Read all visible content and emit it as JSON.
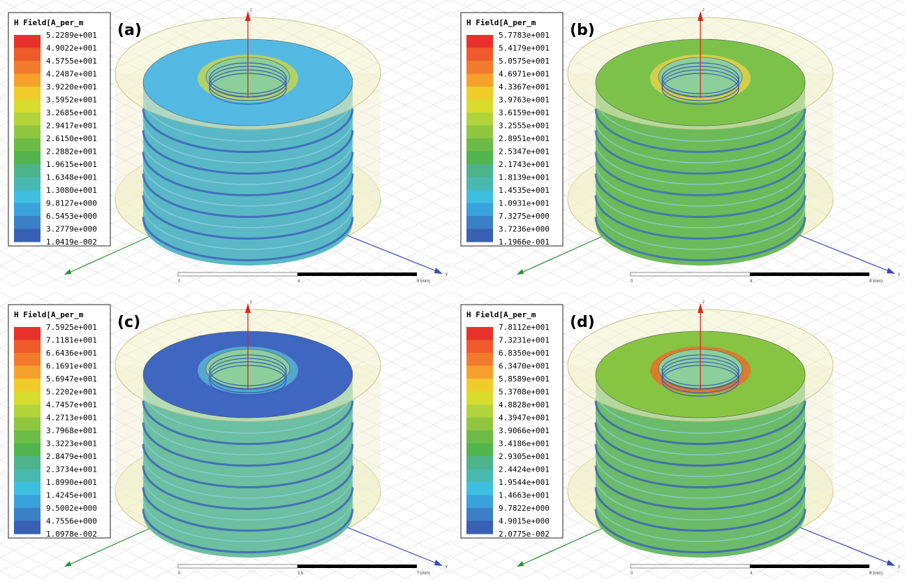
{
  "panels": [
    {
      "label": "(a)",
      "legend": {
        "title": "H Field[A_per_m",
        "labels": [
          "5.2289e+001",
          "4.9022e+001",
          "4.5755e+001",
          "4.2487e+001",
          "3.9220e+001",
          "3.5952e+001",
          "3.2685e+001",
          "2.9417e+001",
          "2.6150e+001",
          "2.2882e+001",
          "1.9615e+001",
          "1.6348e+001",
          "1.3080e+001",
          "9.8127e+000",
          "6.5453e+000",
          "3.2779e+000",
          "1.0419e-002"
        ]
      },
      "scale": [
        "0",
        "4",
        "8 (mm)"
      ],
      "axes": [
        "z",
        "y"
      ]
    },
    {
      "label": "(b)",
      "legend": {
        "title": "H Field[A_per_m",
        "labels": [
          "5.7783e+001",
          "5.4179e+001",
          "5.0575e+001",
          "4.6971e+001",
          "4.3367e+001",
          "3.9763e+001",
          "3.6159e+001",
          "3.2555e+001",
          "2.8951e+001",
          "2.5347e+001",
          "2.1743e+001",
          "1.8139e+001",
          "1.4535e+001",
          "1.0931e+001",
          "7.3275e+000",
          "3.7236e+000",
          "1.1966e-001"
        ]
      },
      "scale": [
        "0",
        "4",
        "8 (mm)"
      ],
      "axes": [
        "z",
        "y"
      ]
    },
    {
      "label": "(c)",
      "legend": {
        "title": "H Field[A_per_m",
        "labels": [
          "7.5925e+001",
          "7.1181e+001",
          "6.6436e+001",
          "6.1691e+001",
          "5.6947e+001",
          "5.2202e+001",
          "4.7457e+001",
          "4.2713e+001",
          "3.7968e+001",
          "3.3223e+001",
          "2.8479e+001",
          "2.3734e+001",
          "1.8990e+001",
          "1.4245e+001",
          "9.5002e+000",
          "4.7556e+000",
          "1.0978e-002"
        ]
      },
      "scale": [
        "0",
        "3.5",
        "7 (mm)"
      ],
      "axes": [
        "z",
        "y"
      ]
    },
    {
      "label": "(d)",
      "legend": {
        "title": "H Field[A_per_m",
        "labels": [
          "7.8112e+001",
          "7.3231e+001",
          "6.8350e+001",
          "6.3470e+001",
          "5.8589e+001",
          "5.3708e+001",
          "4.8828e+001",
          "4.3947e+001",
          "3.9066e+001",
          "3.4186e+001",
          "2.9305e+001",
          "2.4424e+001",
          "1.9544e+001",
          "1.4663e+001",
          "9.7822e+000",
          "4.9015e+000",
          "2.0775e-002"
        ]
      },
      "scale": [
        "0",
        "4",
        "8 (mm)"
      ],
      "axes": [
        "z",
        "y"
      ]
    }
  ]
}
